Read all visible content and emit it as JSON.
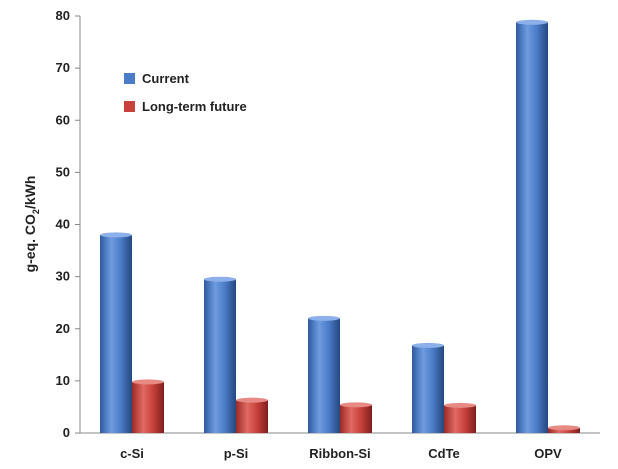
{
  "chart_data": {
    "type": "bar",
    "title": "",
    "xlabel": "",
    "ylabel_parts": [
      "g-eq. CO",
      "2",
      "/kWh"
    ],
    "ylim": [
      0,
      80
    ],
    "yticks": [
      0,
      10,
      20,
      30,
      40,
      50,
      60,
      70,
      80
    ],
    "categories": [
      "c-Si",
      "p-Si",
      "Ribbon-Si",
      "CdTe",
      "OPV"
    ],
    "series": [
      {
        "name": "Current",
        "values": [
          38,
          29.5,
          22,
          16.8,
          78.8
        ],
        "color": "#4a7cc7"
      },
      {
        "name": "Long-term future",
        "values": [
          9.8,
          6.3,
          5.4,
          5.3,
          1.0
        ],
        "color": "#c8413c"
      }
    ],
    "grid": false,
    "legend_position": "upper-left",
    "bar_style": "3d-cylinder"
  }
}
